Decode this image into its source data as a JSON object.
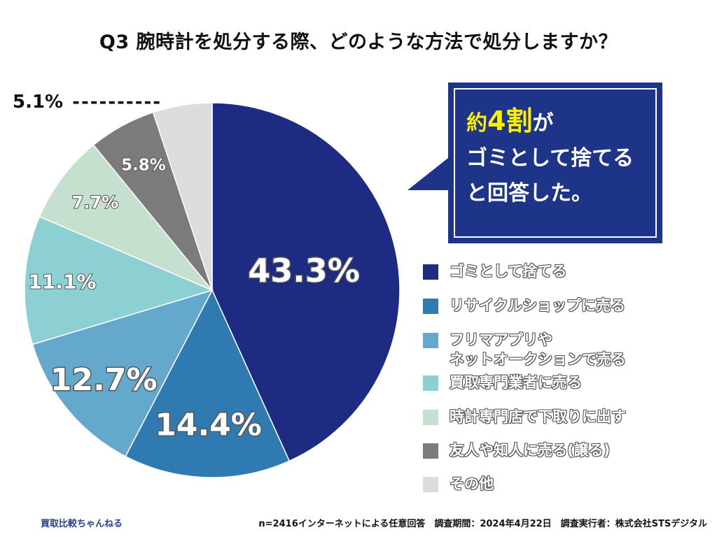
{
  "title": "Q3 腕時計を処分する際、どのような方法で処分しますか？",
  "chart_data": {
    "type": "pie",
    "title": "Q3 腕時計を処分する際、どのような方法で処分しますか？",
    "slices": [
      {
        "label": "ゴミとして捨てる",
        "value": 43.3,
        "display": "43.3%",
        "color": "#1d2b83"
      },
      {
        "label": "リサイクルショップに売る",
        "value": 14.4,
        "display": "14.4%",
        "color": "#2f7bb1"
      },
      {
        "label": "フリマアプリや ネットオークションで売る",
        "value": 12.7,
        "display": "12.7%",
        "color": "#64a8cc"
      },
      {
        "label": "買取専門業者に売る",
        "value": 11.1,
        "display": "11.1%",
        "color": "#8dd0d4"
      },
      {
        "label": "時計専門店で下取りに出す",
        "value": 7.7,
        "display": "7.7%",
        "color": "#c5e0cf"
      },
      {
        "label": "友人や知人に売る(譲る)",
        "value": 5.8,
        "display": "5.8%",
        "color": "#7b7b7b"
      },
      {
        "label": "その他",
        "value": 5.1,
        "display": "5.1%",
        "color": "#dcdcdc"
      }
    ]
  },
  "legend": {
    "items": [
      {
        "line1": "ゴミとして捨てる",
        "line2": ""
      },
      {
        "line1": "リサイクルショップに売る",
        "line2": ""
      },
      {
        "line1": "フリマアプリや",
        "line2": "ネットオークションで売る"
      },
      {
        "line1": "買取専門業者に売る",
        "line2": ""
      },
      {
        "line1": "時計専門店で下取りに出す",
        "line2": ""
      },
      {
        "line1": "友人や知人に売る(譲る)",
        "line2": ""
      },
      {
        "line1": "その他",
        "line2": ""
      }
    ]
  },
  "callout": {
    "prefix": "約",
    "highlight": "4割",
    "suffix": "が",
    "line2": "ゴミとして捨てる",
    "line3": "と回答した。"
  },
  "outside_label": {
    "text": "5.1%",
    "dashes": "----------"
  },
  "footer": {
    "left": "買取比較ちゃんねる",
    "right": "n=2416インターネットによる任意回答　調査期間：2024年4月22日　調査実行者：株式会社STSデジタル"
  }
}
